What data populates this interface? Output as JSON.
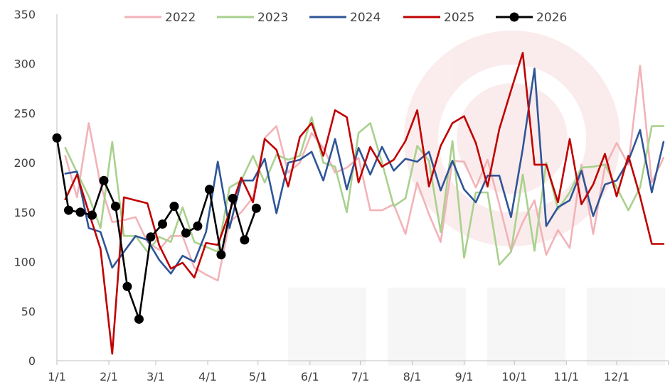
{
  "chart_data": {
    "type": "line",
    "title": "",
    "xlabel": "",
    "ylabel": "",
    "ylim": [
      0,
      350
    ],
    "yticks": [
      0,
      50,
      100,
      150,
      200,
      250,
      300,
      350
    ],
    "xlim": [
      1,
      366
    ],
    "xtick_labels": [
      "1/1",
      "2/1",
      "3/1",
      "4/1",
      "5/1",
      "6/1",
      "7/1",
      "8/1",
      "9/1",
      "10/1",
      "11/1",
      "12/1"
    ],
    "xtick_days": [
      1,
      32,
      60,
      91,
      121,
      152,
      182,
      213,
      244,
      274,
      305,
      335
    ],
    "grid": false,
    "legend_position": "top",
    "series": [
      {
        "name": "2022",
        "color": "#F2B3B8",
        "marker": false,
        "x": [
          6,
          13,
          20,
          27,
          34,
          41,
          48,
          55,
          62,
          69,
          76,
          83,
          90,
          97,
          104,
          111,
          118,
          125,
          132,
          139,
          146,
          153,
          160,
          167,
          174,
          181,
          188,
          195,
          202,
          209,
          216,
          223,
          230,
          237,
          244,
          251,
          258,
          265,
          272,
          279,
          286,
          293,
          300,
          307,
          314,
          321,
          328,
          335,
          342,
          349,
          356,
          363
        ],
        "y": [
          207,
          165,
          240,
          178,
          140,
          142,
          145,
          120,
          112,
          126,
          126,
          94,
          87,
          81,
          140,
          150,
          165,
          225,
          237,
          190,
          200,
          230,
          215,
          190,
          195,
          205,
          152,
          152,
          158,
          128,
          180,
          148,
          120,
          202,
          201,
          175,
          203,
          158,
          111,
          140,
          162,
          107,
          132,
          114,
          198,
          128,
          196,
          220,
          198,
          298,
          180,
          205
        ]
      },
      {
        "name": "2023",
        "color": "#A9D18E",
        "marker": false,
        "x": [
          6,
          13,
          20,
          27,
          34,
          41,
          48,
          55,
          62,
          69,
          76,
          83,
          90,
          97,
          104,
          111,
          118,
          125,
          132,
          139,
          146,
          153,
          160,
          167,
          174,
          181,
          188,
          195,
          202,
          209,
          216,
          223,
          230,
          237,
          244,
          251,
          258,
          265,
          272,
          279,
          286,
          293,
          300,
          307,
          314,
          321,
          328,
          335,
          342,
          349,
          356,
          363
        ],
        "y": [
          215,
          190,
          166,
          134,
          221,
          126,
          126,
          110,
          125,
          120,
          155,
          120,
          115,
          110,
          175,
          182,
          207,
          180,
          208,
          203,
          207,
          246,
          200,
          196,
          150,
          230,
          240,
          200,
          156,
          164,
          217,
          202,
          130,
          222,
          104,
          170,
          170,
          97,
          110,
          188,
          111,
          200,
          153,
          170,
          195,
          196,
          198,
          175,
          152,
          175,
          237,
          237
        ]
      },
      {
        "name": "2024",
        "color": "#2F5597",
        "marker": false,
        "x": [
          6,
          13,
          20,
          27,
          34,
          41,
          48,
          55,
          62,
          69,
          76,
          83,
          90,
          97,
          104,
          111,
          118,
          125,
          132,
          139,
          146,
          153,
          160,
          167,
          174,
          181,
          188,
          195,
          202,
          209,
          216,
          223,
          230,
          237,
          244,
          251,
          258,
          265,
          272,
          279,
          286,
          293,
          300,
          307,
          314,
          321,
          328,
          335,
          342,
          349,
          356,
          363
        ],
        "y": [
          189,
          191,
          134,
          130,
          94,
          110,
          126,
          122,
          102,
          88,
          106,
          100,
          130,
          201,
          134,
          182,
          182,
          204,
          149,
          200,
          203,
          211,
          182,
          224,
          173,
          215,
          188,
          216,
          192,
          204,
          201,
          211,
          172,
          202,
          173,
          160,
          187,
          187,
          145,
          214,
          295,
          136,
          155,
          162,
          192,
          146,
          178,
          182,
          202,
          233,
          170,
          221
        ]
      },
      {
        "name": "2025",
        "color": "#C00000",
        "marker": false,
        "x": [
          6,
          13,
          20,
          27,
          34,
          41,
          48,
          55,
          62,
          69,
          76,
          83,
          90,
          97,
          104,
          111,
          118,
          125,
          132,
          139,
          146,
          153,
          160,
          167,
          174,
          181,
          188,
          195,
          202,
          209,
          216,
          223,
          230,
          237,
          244,
          251,
          258,
          265,
          272,
          279,
          286,
          293,
          300,
          307,
          314,
          321,
          328,
          335,
          342,
          349,
          356,
          363
        ],
        "y": [
          163,
          188,
          150,
          113,
          7,
          165,
          162,
          159,
          117,
          93,
          99,
          84,
          119,
          117,
          150,
          185,
          160,
          224,
          213,
          176,
          226,
          240,
          207,
          253,
          246,
          180,
          216,
          196,
          203,
          222,
          253,
          176,
          217,
          240,
          247,
          220,
          176,
          234,
          273,
          311,
          198,
          198,
          160,
          224,
          158,
          178,
          209,
          166,
          207,
          166,
          118,
          118
        ]
      },
      {
        "name": "2026",
        "color": "#000000",
        "marker": true,
        "x": [
          1,
          8,
          15,
          22,
          29,
          36,
          43,
          50,
          57,
          64,
          71,
          78,
          85,
          92,
          99,
          106,
          113,
          120
        ],
        "y": [
          225,
          152,
          150,
          147,
          182,
          156,
          75,
          42,
          125,
          138,
          156,
          129,
          136,
          173,
          107,
          164,
          122,
          154
        ]
      }
    ]
  }
}
